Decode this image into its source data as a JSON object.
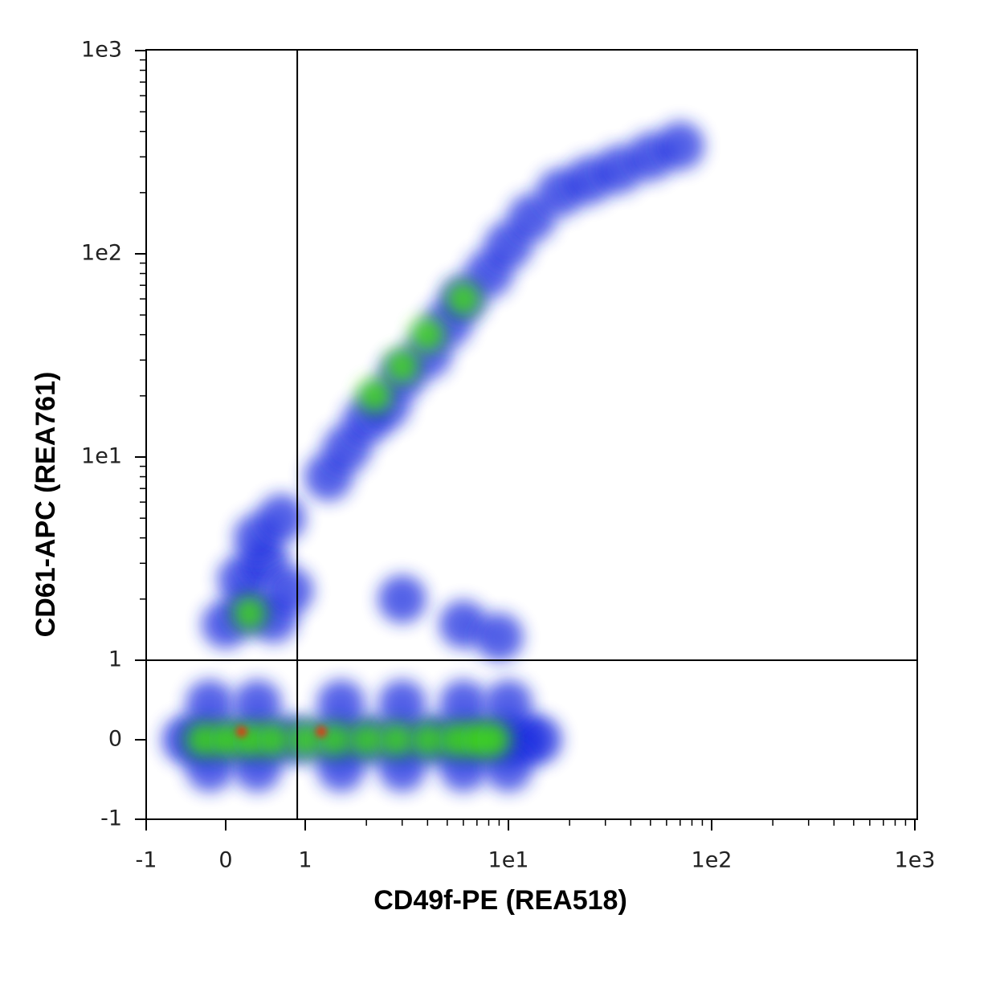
{
  "chart_data": {
    "type": "scatter",
    "xlabel": "CD49f-PE (REA518)",
    "ylabel": "CD61-APC (REA761)",
    "scale": "biexponential",
    "xlim": [
      -1,
      1000
    ],
    "ylim": [
      -1,
      1000
    ],
    "xticks": [
      -1,
      0,
      1,
      {
        "value": 10,
        "label": "1e1"
      },
      {
        "value": 100,
        "label": "1e2"
      },
      {
        "value": 1000,
        "label": "1e3"
      }
    ],
    "yticks": [
      -1,
      0,
      1,
      {
        "value": 10,
        "label": "1e1"
      },
      {
        "value": 100,
        "label": "1e2"
      },
      {
        "value": 1000,
        "label": "1e3"
      }
    ],
    "gates": {
      "x": 0.9,
      "y": 1
    },
    "series": [
      {
        "color": "#1a2fe0",
        "x": [
          -0.5,
          -0.3,
          0,
          0.3,
          0.6,
          0.9,
          1.3,
          1.7,
          2.2,
          3,
          4,
          5,
          6.5,
          8,
          10,
          12,
          14,
          -0.2,
          0.4,
          1.5,
          3,
          6,
          10,
          -0.2,
          0.4,
          1.5,
          3,
          6,
          10,
          0,
          0.3,
          0.6,
          0.2,
          0.5,
          0.8,
          0.4,
          0.7,
          1.3,
          1.6,
          2,
          2.5,
          3,
          4,
          5,
          6,
          8,
          10,
          13,
          18,
          25,
          35,
          50,
          70,
          3,
          6,
          9
        ],
        "y": [
          0,
          0,
          0,
          0,
          0,
          0,
          0,
          0,
          0,
          0,
          0,
          0,
          0,
          0,
          0,
          0,
          0,
          -0.35,
          -0.35,
          -0.35,
          -0.35,
          -0.35,
          -0.35,
          0.45,
          0.45,
          0.45,
          0.45,
          0.45,
          0.45,
          1.5,
          1.8,
          1.6,
          2.5,
          3,
          2.2,
          4,
          5,
          8,
          11,
          15,
          18,
          25,
          32,
          45,
          60,
          80,
          110,
          150,
          200,
          230,
          260,
          300,
          340,
          2,
          1.5,
          1.3
        ]
      },
      {
        "color": "#3fe010",
        "x": [
          -0.3,
          0,
          0.3,
          0.6,
          1,
          1.4,
          2,
          2.8,
          4,
          5.5,
          7,
          8.5,
          0.3,
          2.2,
          3,
          4,
          6
        ],
        "y": [
          0,
          0,
          0,
          0,
          0,
          0,
          0,
          0,
          0,
          0,
          0,
          0,
          1.7,
          20,
          28,
          40,
          60
        ]
      },
      {
        "color": "#e03a10",
        "x": [
          0.2,
          1.2
        ],
        "y": [
          0.1,
          0.1
        ]
      }
    ]
  }
}
